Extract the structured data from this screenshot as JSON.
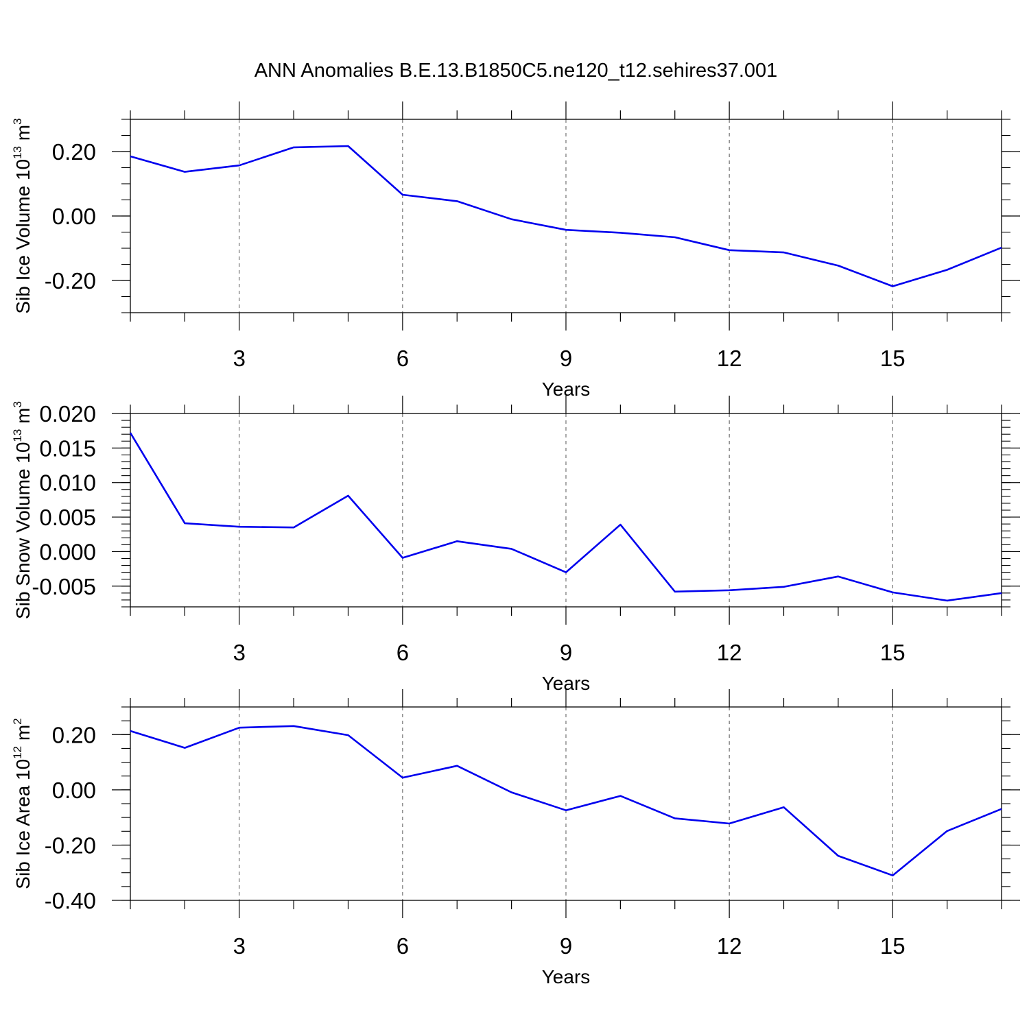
{
  "figure": {
    "title": "ANN Anomalies B.E.13.B1850C5.ne120_t12.sehires37.001"
  },
  "chart_data": [
    {
      "type": "line",
      "xlabel": "Years",
      "ylabel": {
        "text": "Sib Ice Volume 10",
        "exp": "13",
        "unit": " m",
        "unit_exp": "3"
      },
      "xlim": [
        1,
        17
      ],
      "ylim": [
        -0.3,
        0.3
      ],
      "x_ticks": [
        3,
        6,
        9,
        12,
        15
      ],
      "y_ticks": [
        {
          "value": 0.2,
          "label": "0.20"
        },
        {
          "value": 0.0,
          "label": "0.00"
        },
        {
          "value": -0.2,
          "label": "-0.20"
        }
      ],
      "y_minor_step": 0.05,
      "grid": "vertical-dashed",
      "series": [
        {
          "color": "#0000ee",
          "x": [
            1,
            2,
            3,
            4,
            5,
            6,
            7,
            8,
            9,
            10,
            11,
            12,
            13,
            14,
            15,
            16,
            17
          ],
          "y": [
            0.185,
            0.137,
            0.157,
            0.213,
            0.217,
            0.066,
            0.046,
            -0.01,
            -0.043,
            -0.052,
            -0.066,
            -0.106,
            -0.113,
            -0.154,
            -0.218,
            -0.167,
            -0.098
          ]
        }
      ]
    },
    {
      "type": "line",
      "xlabel": "Years",
      "ylabel": {
        "text": "Sib Snow Volume 10",
        "exp": "13",
        "unit": " m",
        "unit_exp": "3"
      },
      "xlim": [
        1,
        17
      ],
      "ylim": [
        -0.008,
        0.02
      ],
      "x_ticks": [
        3,
        6,
        9,
        12,
        15
      ],
      "y_ticks": [
        {
          "value": 0.02,
          "label": "0.020"
        },
        {
          "value": 0.015,
          "label": "0.015"
        },
        {
          "value": 0.01,
          "label": "0.010"
        },
        {
          "value": 0.005,
          "label": "0.005"
        },
        {
          "value": 0.0,
          "label": "0.000"
        },
        {
          "value": -0.005,
          "label": "-0.005"
        }
      ],
      "y_minor_step": 0.001,
      "grid": "vertical-dashed",
      "series": [
        {
          "color": "#0000ee",
          "x": [
            1,
            2,
            3,
            4,
            5,
            6,
            7,
            8,
            9,
            10,
            11,
            12,
            13,
            14,
            15,
            16,
            17
          ],
          "y": [
            0.0172,
            0.0041,
            0.0036,
            0.0035,
            0.0081,
            -0.0009,
            0.0015,
            0.0004,
            -0.003,
            0.0039,
            -0.0058,
            -0.0056,
            -0.0051,
            -0.0036,
            -0.0059,
            -0.0071,
            -0.006
          ]
        }
      ]
    },
    {
      "type": "line",
      "xlabel": "Years",
      "ylabel": {
        "text": "Sib Ice Area 10",
        "exp": "12",
        "unit": " m",
        "unit_exp": "2"
      },
      "xlim": [
        1,
        17
      ],
      "ylim": [
        -0.4,
        0.3
      ],
      "x_ticks": [
        3,
        6,
        9,
        12,
        15
      ],
      "y_ticks": [
        {
          "value": 0.2,
          "label": "0.20"
        },
        {
          "value": 0.0,
          "label": "0.00"
        },
        {
          "value": -0.2,
          "label": "-0.20"
        },
        {
          "value": -0.4,
          "label": "-0.40"
        }
      ],
      "y_minor_step": 0.05,
      "grid": "vertical-dashed",
      "series": [
        {
          "color": "#0000ee",
          "x": [
            1,
            2,
            3,
            4,
            5,
            6,
            7,
            8,
            9,
            10,
            11,
            12,
            13,
            14,
            15,
            16,
            17
          ],
          "y": [
            0.213,
            0.152,
            0.225,
            0.231,
            0.198,
            0.044,
            0.087,
            -0.009,
            -0.074,
            -0.022,
            -0.103,
            -0.122,
            -0.063,
            -0.239,
            -0.31,
            -0.149,
            -0.069
          ]
        }
      ]
    }
  ]
}
